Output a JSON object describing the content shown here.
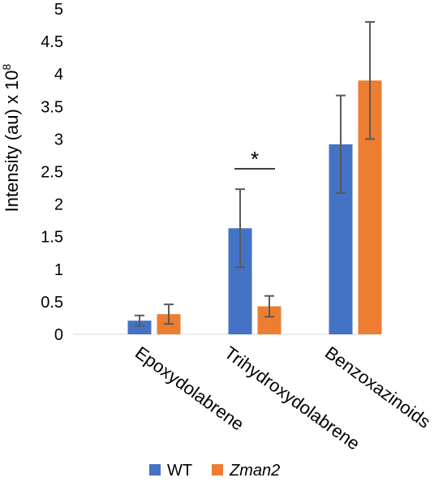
{
  "chart_data": {
    "type": "bar",
    "categories": [
      "Epoxydolabrene",
      "Trihydroxydolabrene",
      "Benzoxazinoids"
    ],
    "series": [
      {
        "name": "WT",
        "color": "#4472C4",
        "values": [
          0.21,
          1.63,
          2.92
        ],
        "error": [
          0.08,
          0.6,
          0.75
        ]
      },
      {
        "name": "Zman2",
        "color": "#ED7D31",
        "values": [
          0.31,
          0.43,
          3.9
        ],
        "error": [
          0.15,
          0.16,
          0.9
        ]
      }
    ],
    "ylabel_main": "Intensity (au) x 10",
    "ylabel_sup": "8",
    "ylim": [
      0,
      5
    ],
    "yticks": [
      "0",
      "0.5",
      "1",
      "1.5",
      "2",
      "2.5",
      "3",
      "3.5",
      "4",
      "4.5",
      "5"
    ],
    "annotations": [
      {
        "category": "Trihydroxydolabrene",
        "text": "*"
      }
    ],
    "legend_position": "bottom",
    "grid": false
  }
}
